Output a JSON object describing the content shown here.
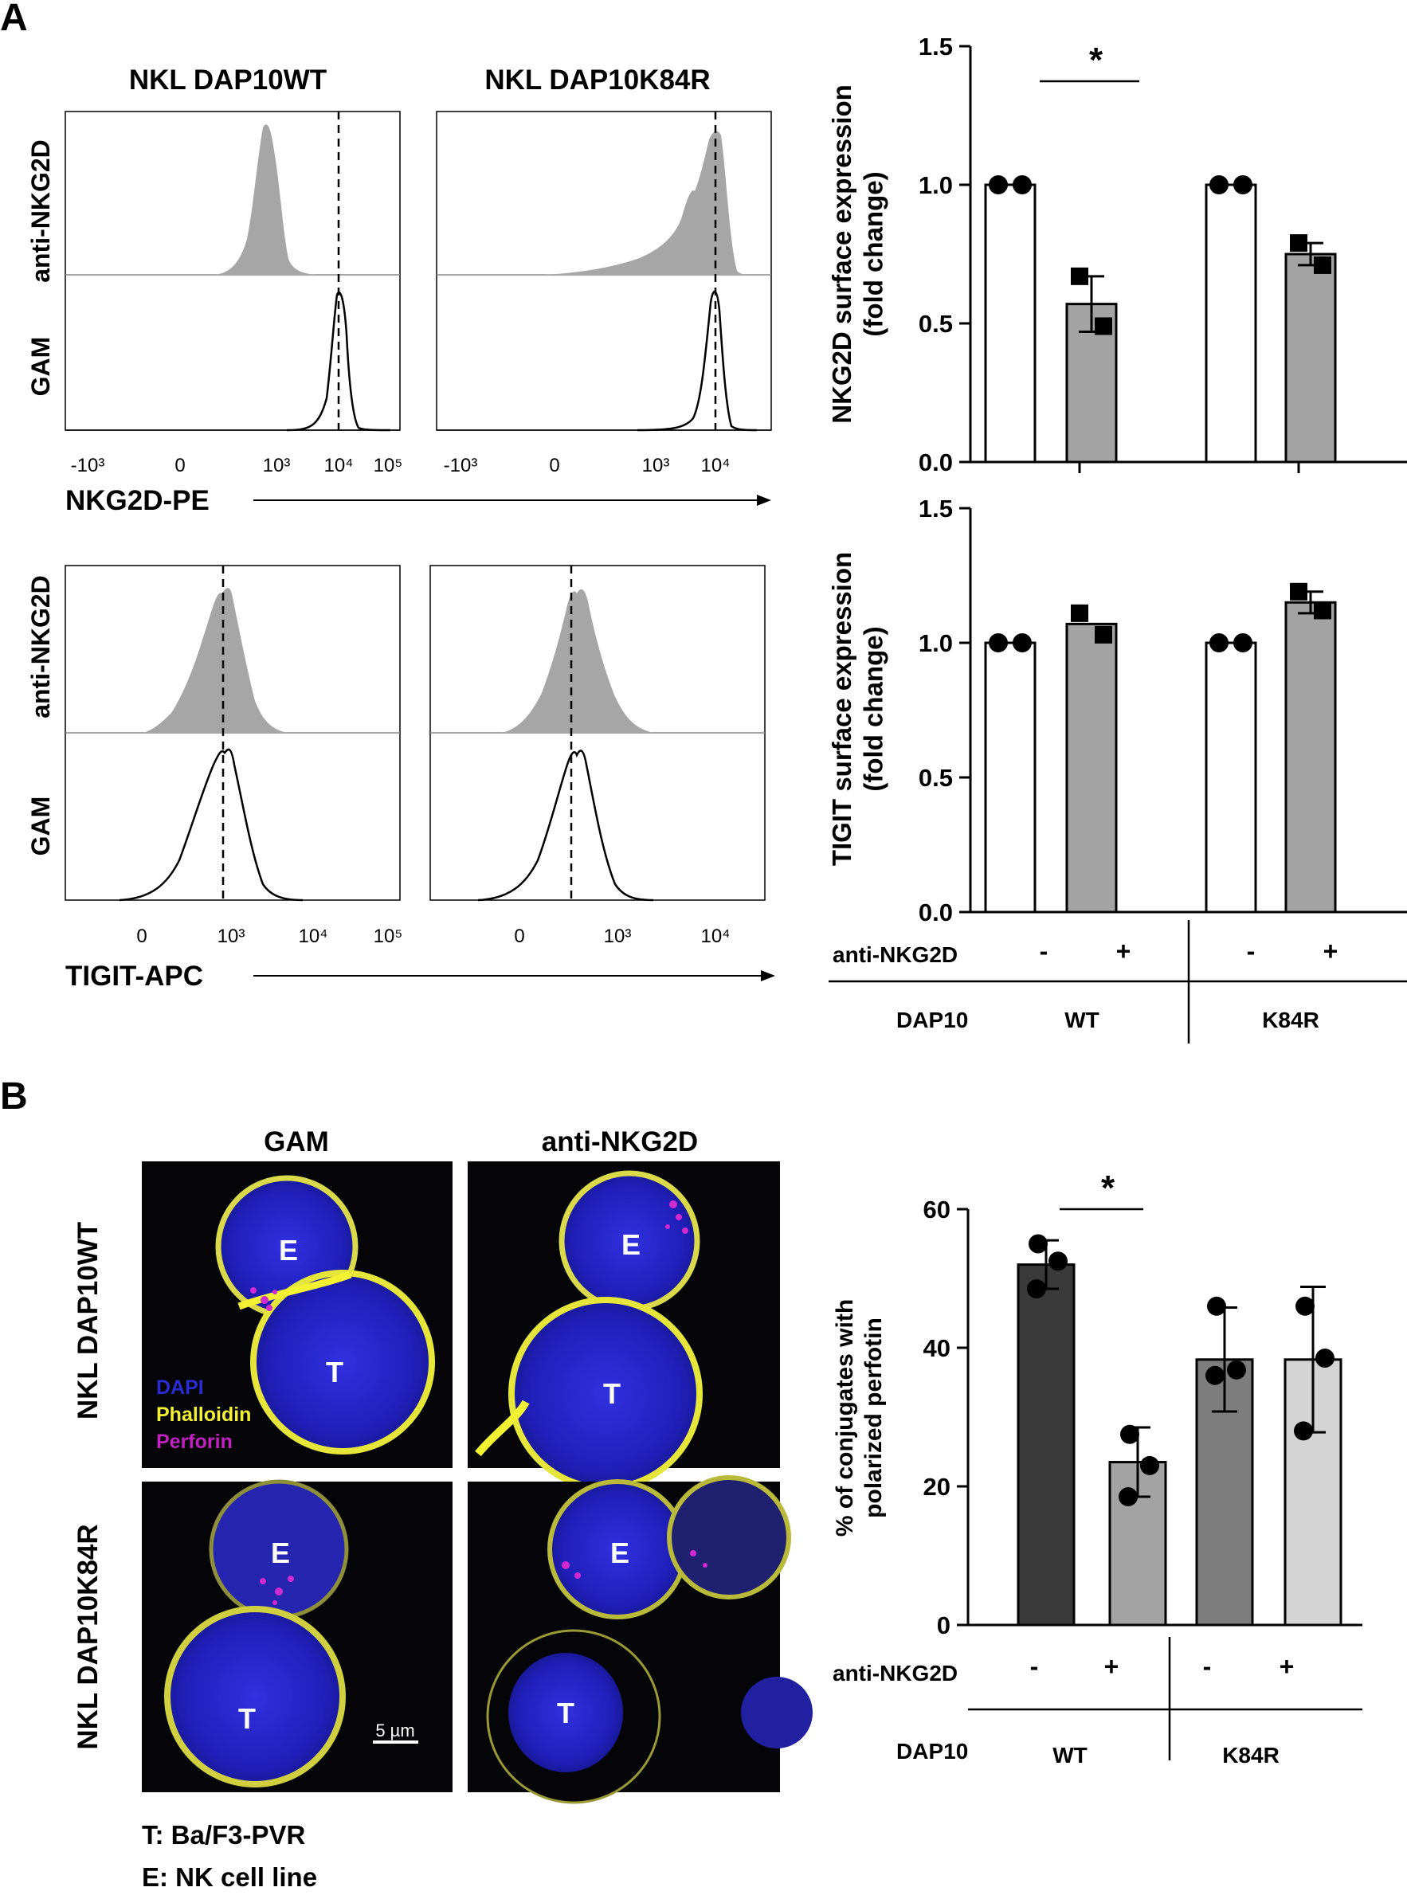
{
  "panels": {
    "a": "A",
    "b": "B"
  },
  "flow": {
    "col_titles": [
      "NKL DAP10WT",
      "NKL DAP10K84R"
    ],
    "row_labels": [
      "anti-NKG2D",
      "GAM"
    ],
    "nkg2d_axis": {
      "label": "NKG2D-PE",
      "ticks": [
        "-10³",
        "0",
        "10³",
        "10⁴",
        "10⁵"
      ]
    },
    "tigit_axis": {
      "label": "TIGIT-APC",
      "ticks": [
        "0",
        "10³",
        "10⁴",
        "10⁵"
      ]
    }
  },
  "chart_data": [
    {
      "type": "bar",
      "ylabel": "NKG2D surface expression (fold change)",
      "ylim": [
        0,
        1.5
      ],
      "yticks": [
        "0.0",
        "0.5",
        "1.0",
        "1.5"
      ],
      "categories": [
        "WT -",
        "WT +",
        "K84R -",
        "K84R +"
      ],
      "values": [
        1.0,
        0.57,
        1.0,
        0.75
      ],
      "errors": [
        0,
        0.1,
        0,
        0.04
      ],
      "points": [
        [
          1.0,
          1.0
        ],
        [
          0.67,
          0.49
        ],
        [
          1.0,
          1.0
        ],
        [
          0.79,
          0.71
        ]
      ],
      "significance": "*"
    },
    {
      "type": "bar",
      "ylabel": "TIGIT surface expression (fold change)",
      "ylim": [
        0,
        1.5
      ],
      "yticks": [
        "0.0",
        "0.5",
        "1.0",
        "1.5"
      ],
      "categories": [
        "WT -",
        "WT +",
        "K84R -",
        "K84R +"
      ],
      "values": [
        1.0,
        1.07,
        1.0,
        1.15
      ],
      "errors": [
        0,
        0.0,
        0,
        0.04
      ],
      "points": [
        [
          1.0,
          1.0
        ],
        [
          1.11,
          1.03
        ],
        [
          1.0,
          1.0
        ],
        [
          1.19,
          1.12
        ]
      ]
    },
    {
      "type": "bar",
      "ylabel": "% of conjugates with polarized perfotin",
      "ylim": [
        0,
        60
      ],
      "yticks": [
        "0",
        "20",
        "40",
        "60"
      ],
      "categories": [
        "WT -",
        "WT +",
        "K84R -",
        "K84R +"
      ],
      "values": [
        52,
        23.5,
        38.3,
        38.3
      ],
      "errors": [
        3.5,
        5,
        7.5,
        10.5
      ],
      "points": [
        [
          55,
          52.5,
          48.5
        ],
        [
          27.5,
          23,
          18.5
        ],
        [
          46,
          36.8,
          36
        ],
        [
          46,
          38.5,
          28
        ]
      ],
      "colors": [
        "#3a3a3a",
        "#a3a3a3",
        "#7d7d7d",
        "#d4d4d4"
      ],
      "significance": "*"
    }
  ],
  "treatment_table": {
    "row1_label": "anti-NKG2D",
    "signs": [
      "-",
      "+",
      "-",
      "+"
    ],
    "row2_label": "DAP10",
    "groups": [
      "WT",
      "K84R"
    ]
  },
  "microscopy": {
    "col_titles": [
      "GAM",
      "anti-NKG2D"
    ],
    "row_titles": [
      "NKL DAP10WT",
      "NKL DAP10K84R"
    ],
    "cell_E": "E",
    "cell_T": "T",
    "legend": [
      {
        "label": "DAPI",
        "color": "#2b2bd6"
      },
      {
        "label": "Phalloidin",
        "color": "#f2f233"
      },
      {
        "label": "Perforin",
        "color": "#c21fc2"
      }
    ],
    "scale_bar": "5 µm",
    "footnotes": [
      "T: Ba/F3-PVR",
      "E: NK cell line"
    ]
  }
}
